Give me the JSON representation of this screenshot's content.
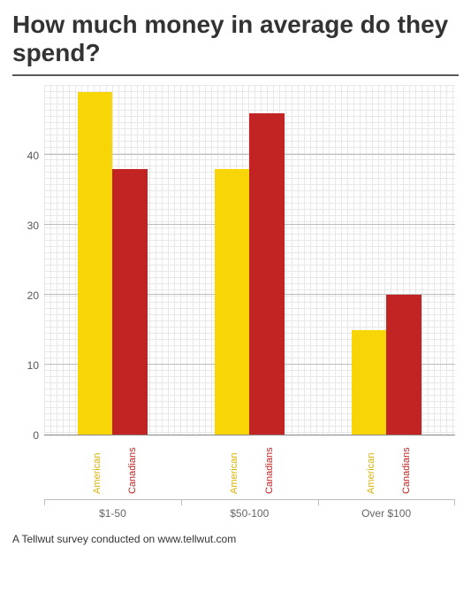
{
  "title": "How much money in average do they spend?",
  "caption": "A Tellwut survey conducted on www.tellwut.com",
  "chart": {
    "type": "bar",
    "background_color": "#ffffff",
    "grid_dot_color": "#d7d7d7",
    "gridline_color": "#bdbdbd",
    "axis_text_color": "#555555",
    "ylim": [
      0,
      50
    ],
    "yticks": [
      0,
      10,
      20,
      30,
      40
    ],
    "categories": [
      "$1-50",
      "$50-100",
      "Over  $100"
    ],
    "series": [
      {
        "name": "American",
        "color": "#f7d506",
        "text_color": "#d9b300"
      },
      {
        "name": "Canadians",
        "color": "#c22424",
        "text_color": "#c22424"
      }
    ],
    "values": [
      [
        49,
        38
      ],
      [
        38,
        46
      ],
      [
        15,
        20
      ]
    ],
    "bar_width_pct": 8.5,
    "group_gap_pct": 8.0,
    "category_width_pct": 33.3,
    "series_label_fontsize": 11,
    "series_label_rotation": -90
  }
}
